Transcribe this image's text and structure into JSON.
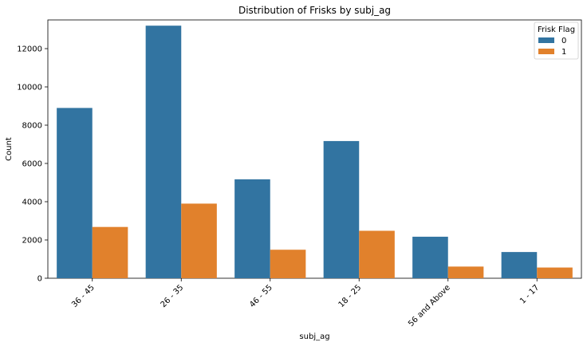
{
  "chart_data": {
    "type": "bar",
    "title": "Distribution of Frisks by subj_ag",
    "xlabel": "subj_ag",
    "ylabel": "Count",
    "categories": [
      "36 - 45",
      "26 - 35",
      "46 - 55",
      "18 - 25",
      "56 and Above",
      "1 - 17"
    ],
    "series": [
      {
        "name": "0",
        "values": [
          8900,
          13200,
          5170,
          7170,
          2170,
          1370
        ],
        "color": "#3274a1"
      },
      {
        "name": "1",
        "values": [
          2680,
          3900,
          1490,
          2480,
          610,
          560
        ],
        "color": "#e1812c"
      }
    ],
    "ylim": [
      0,
      13500
    ],
    "yticks": [
      0,
      2000,
      4000,
      6000,
      8000,
      10000,
      12000
    ],
    "grid": false,
    "legend": {
      "title": "Frisk Flag",
      "placement": "top-right"
    }
  }
}
